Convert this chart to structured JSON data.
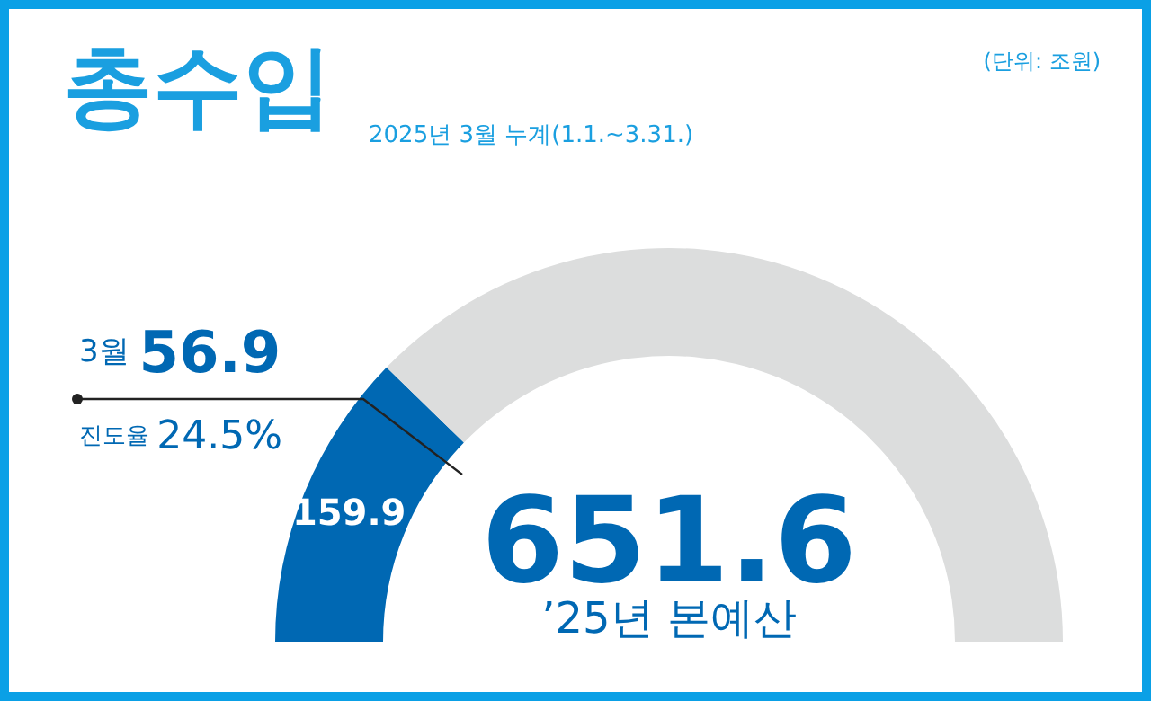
{
  "chart_data": {
    "type": "donut",
    "title": "총수입",
    "subtitle": "2025년 3월 누계(1.1.~3.31.)",
    "categories": [
      null,
      null
    ],
    "values": [
      159.9,
      491.7
    ],
    "colors": [
      "#0068b3",
      "#dcdddd"
    ],
    "value_labels": [
      "159.9",
      null
    ],
    "annotations": [
      "(단위: 조원)",
      "3월 56.9",
      "진도율 24.5%",
      "651.6",
      "’25년 본예산"
    ]
  }
}
